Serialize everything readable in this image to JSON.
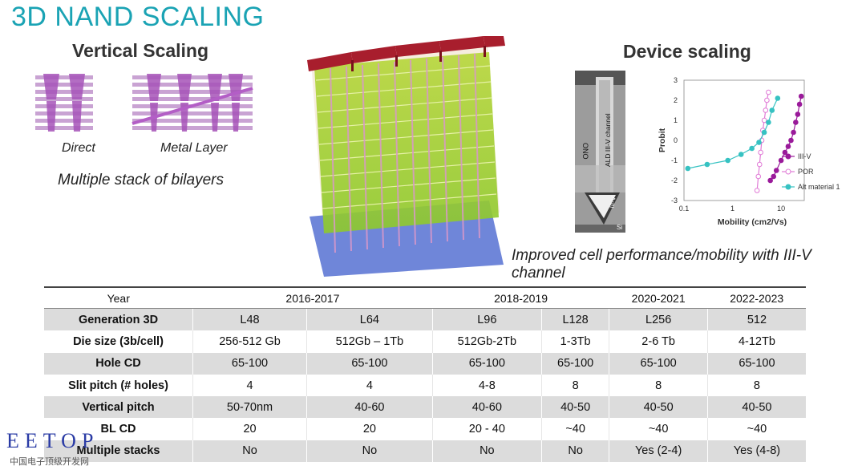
{
  "title": "3D NAND SCALING",
  "vertical": {
    "heading": "Vertical Scaling",
    "direct_label": "Direct",
    "metal_label": "Metal Layer",
    "caption": "Multiple stack of bilayers"
  },
  "device": {
    "heading": "Device scaling",
    "tem_labels": [
      "ONO",
      "ALD III-V channel",
      "III-V",
      "Si"
    ],
    "caption": "Improved cell performance/mobility with III-V channel"
  },
  "colors": {
    "title": "#1aa3b4",
    "iiiv": "#9a1a9a",
    "por": "#e07ad6",
    "alt": "#36c2c2"
  },
  "chart_data": {
    "type": "scatter",
    "xlabel": "Mobility (cm2/Vs)",
    "ylabel": "Probit",
    "xscale": "log",
    "xlim": [
      0.1,
      30
    ],
    "ylim": [
      -3,
      3
    ],
    "x_ticks": [
      "0.1",
      "1",
      "10"
    ],
    "y_ticks": [
      "3",
      "2",
      "1",
      "0",
      "-1",
      "-2",
      "-3"
    ],
    "legend_position": "right",
    "series": [
      {
        "name": "III-V",
        "x": [
          6,
          7,
          8,
          10,
          12,
          14,
          16,
          18,
          20,
          22,
          24,
          26
        ],
        "y": [
          -2.0,
          -1.8,
          -1.5,
          -1.0,
          -0.6,
          -0.3,
          0.0,
          0.4,
          0.9,
          1.3,
          1.8,
          2.2
        ]
      },
      {
        "name": "POR",
        "x": [
          3.2,
          3.4,
          3.6,
          3.8,
          4.0,
          4.2,
          4.5,
          4.8,
          5.1,
          5.5
        ],
        "y": [
          -2.5,
          -1.8,
          -1.2,
          -0.6,
          0.0,
          0.5,
          1.0,
          1.5,
          2.0,
          2.4
        ]
      },
      {
        "name": "Alt material 1",
        "x": [
          0.12,
          0.3,
          0.8,
          1.5,
          2.5,
          3.5,
          4.5,
          5.5,
          6.5,
          8.5
        ],
        "y": [
          -1.4,
          -1.2,
          -1.0,
          -0.7,
          -0.4,
          -0.1,
          0.4,
          0.9,
          1.5,
          2.1
        ]
      }
    ]
  },
  "table": {
    "header_label": "Year",
    "year_groups": [
      "2016-2017",
      "2018-2019",
      "2020-2021",
      "2022-2023"
    ],
    "rows": [
      {
        "label": "Generation 3D",
        "cells": [
          "L48",
          "L64",
          "L96",
          "L128",
          "L256",
          "512"
        ]
      },
      {
        "label": "Die size (3b/cell)",
        "cells": [
          "256-512 Gb",
          "512Gb – 1Tb",
          "512Gb-2Tb",
          "1-3Tb",
          "2-6 Tb",
          "4-12Tb"
        ]
      },
      {
        "label": "Hole CD",
        "cells": [
          "65-100",
          "65-100",
          "65-100",
          "65-100",
          "65-100",
          "65-100"
        ]
      },
      {
        "label": "Slit pitch (# holes)",
        "cells": [
          "4",
          "4",
          "4-8",
          "8",
          "8",
          "8"
        ]
      },
      {
        "label": "Vertical pitch",
        "cells": [
          "50-70nm",
          "40-60",
          "40-60",
          "40-50",
          "40-50",
          "40-50"
        ]
      },
      {
        "label": "BL CD",
        "cells": [
          "20",
          "20",
          "20 - 40",
          "~40",
          "~40",
          "~40"
        ]
      },
      {
        "label": "Multiple stacks",
        "cells": [
          "No",
          "No",
          "No",
          "No",
          "Yes (2-4)",
          "Yes (4-8)"
        ]
      }
    ]
  },
  "watermark": {
    "logo": "EETOP",
    "subtitle": "中国电子顶级开发网"
  }
}
